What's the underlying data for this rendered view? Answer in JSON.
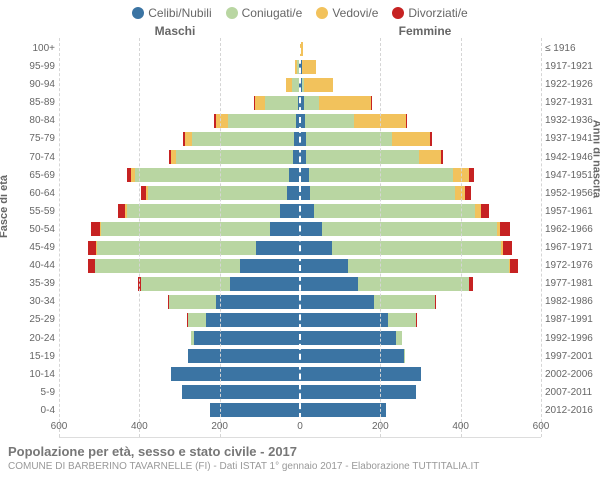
{
  "legend": [
    {
      "label": "Celibi/Nubili",
      "color": "#3b74a3"
    },
    {
      "label": "Coniugati/e",
      "color": "#b9d6a2"
    },
    {
      "label": "Vedovi/e",
      "color": "#f2c25c"
    },
    {
      "label": "Divorziati/e",
      "color": "#c62222"
    }
  ],
  "headers": {
    "male": "Maschi",
    "female": "Femmine"
  },
  "axis_labels": {
    "left": "Fasce di età",
    "right": "Anni di nascita"
  },
  "title": "Popolazione per età, sesso e stato civile - 2017",
  "subtitle": "COMUNE DI BARBERINO TAVARNELLE (FI) - Dati ISTAT 1° gennaio 2017 - Elaborazione TUTTITALIA.IT",
  "chart": {
    "type": "population-pyramid-stacked",
    "x_max": 600,
    "x_ticks": [
      600,
      400,
      200,
      0,
      200,
      400,
      600
    ],
    "grid_color": "#d5d5d5",
    "background_color": "#ffffff",
    "bar_outline": "#ffffff",
    "age_labels": [
      "100+",
      "95-99",
      "90-94",
      "85-89",
      "80-84",
      "75-79",
      "70-74",
      "65-69",
      "60-64",
      "55-59",
      "50-54",
      "45-49",
      "40-44",
      "35-39",
      "30-34",
      "25-29",
      "20-24",
      "15-19",
      "10-14",
      "5-9",
      "0-4"
    ],
    "year_labels": [
      "≤ 1916",
      "1917-1921",
      "1922-1926",
      "1927-1931",
      "1932-1936",
      "1937-1941",
      "1942-1946",
      "1947-1951",
      "1952-1956",
      "1957-1961",
      "1962-1966",
      "1967-1971",
      "1972-1976",
      "1977-1981",
      "1982-1986",
      "1987-1991",
      "1992-1996",
      "1997-2001",
      "2002-2006",
      "2007-2011",
      "2012-2016"
    ],
    "male": [
      {
        "single": 0,
        "married": 0,
        "widowed": 1,
        "divorced": 0
      },
      {
        "single": 3,
        "married": 4,
        "widowed": 6,
        "divorced": 0
      },
      {
        "single": 3,
        "married": 18,
        "widowed": 15,
        "divorced": 0
      },
      {
        "single": 5,
        "married": 83,
        "widowed": 25,
        "divorced": 1
      },
      {
        "single": 10,
        "married": 170,
        "widowed": 30,
        "divorced": 3
      },
      {
        "single": 14,
        "married": 255,
        "widowed": 18,
        "divorced": 4
      },
      {
        "single": 18,
        "married": 290,
        "widowed": 13,
        "divorced": 5
      },
      {
        "single": 27,
        "married": 385,
        "widowed": 10,
        "divorced": 8
      },
      {
        "single": 33,
        "married": 345,
        "widowed": 6,
        "divorced": 12
      },
      {
        "single": 50,
        "married": 380,
        "widowed": 5,
        "divorced": 18
      },
      {
        "single": 75,
        "married": 420,
        "widowed": 3,
        "divorced": 22
      },
      {
        "single": 110,
        "married": 395,
        "widowed": 2,
        "divorced": 22
      },
      {
        "single": 150,
        "married": 360,
        "widowed": 1,
        "divorced": 18
      },
      {
        "single": 175,
        "married": 220,
        "widowed": 0,
        "divorced": 8
      },
      {
        "single": 210,
        "married": 115,
        "widowed": 0,
        "divorced": 3
      },
      {
        "single": 235,
        "married": 45,
        "widowed": 0,
        "divorced": 1
      },
      {
        "single": 265,
        "married": 6,
        "widowed": 0,
        "divorced": 0
      },
      {
        "single": 280,
        "married": 0,
        "widowed": 0,
        "divorced": 0
      },
      {
        "single": 320,
        "married": 0,
        "widowed": 0,
        "divorced": 0
      },
      {
        "single": 295,
        "married": 0,
        "widowed": 0,
        "divorced": 0
      },
      {
        "single": 225,
        "married": 0,
        "widowed": 0,
        "divorced": 0
      }
    ],
    "female": [
      {
        "single": 1,
        "married": 0,
        "widowed": 6,
        "divorced": 0
      },
      {
        "single": 4,
        "married": 1,
        "widowed": 35,
        "divorced": 0
      },
      {
        "single": 6,
        "married": 5,
        "widowed": 70,
        "divorced": 0
      },
      {
        "single": 10,
        "married": 38,
        "widowed": 130,
        "divorced": 1
      },
      {
        "single": 12,
        "married": 122,
        "widowed": 130,
        "divorced": 2
      },
      {
        "single": 14,
        "married": 215,
        "widowed": 95,
        "divorced": 4
      },
      {
        "single": 16,
        "married": 280,
        "widowed": 55,
        "divorced": 6
      },
      {
        "single": 22,
        "married": 360,
        "widowed": 40,
        "divorced": 10
      },
      {
        "single": 26,
        "married": 360,
        "widowed": 25,
        "divorced": 14
      },
      {
        "single": 35,
        "married": 400,
        "widowed": 15,
        "divorced": 20
      },
      {
        "single": 55,
        "married": 435,
        "widowed": 9,
        "divorced": 24
      },
      {
        "single": 80,
        "married": 420,
        "widowed": 5,
        "divorced": 24
      },
      {
        "single": 120,
        "married": 400,
        "widowed": 3,
        "divorced": 20
      },
      {
        "single": 145,
        "married": 275,
        "widowed": 1,
        "divorced": 9
      },
      {
        "single": 185,
        "married": 150,
        "widowed": 0,
        "divorced": 3
      },
      {
        "single": 220,
        "married": 70,
        "widowed": 0,
        "divorced": 1
      },
      {
        "single": 240,
        "married": 15,
        "widowed": 0,
        "divorced": 0
      },
      {
        "single": 260,
        "married": 2,
        "widowed": 0,
        "divorced": 0
      },
      {
        "single": 300,
        "married": 0,
        "widowed": 0,
        "divorced": 0
      },
      {
        "single": 290,
        "married": 0,
        "widowed": 0,
        "divorced": 0
      },
      {
        "single": 215,
        "married": 0,
        "widowed": 0,
        "divorced": 0
      }
    ]
  }
}
